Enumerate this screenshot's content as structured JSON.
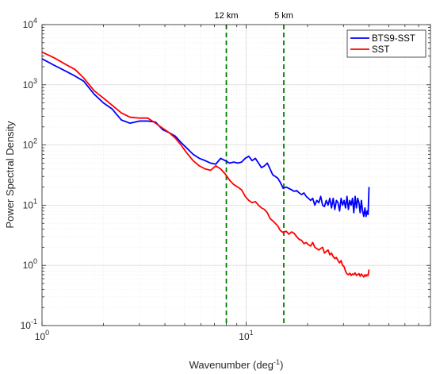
{
  "chart_data": {
    "type": "line",
    "xlabel": "Wavenumber (deg",
    "xlabel_sup": "-1",
    "xlabel_close": ")",
    "ylabel": "Power Spectral Density",
    "xscale": "log",
    "yscale": "log",
    "xlim": [
      1,
      80
    ],
    "ylim": [
      0.1,
      10000
    ],
    "grid": true,
    "legend_position": "top-right",
    "x_ticks": [
      {
        "value": 1,
        "base": "10",
        "exp": "0"
      },
      {
        "value": 10,
        "base": "10",
        "exp": "1"
      }
    ],
    "y_ticks": [
      {
        "value": 0.1,
        "base": "10",
        "exp": "-1"
      },
      {
        "value": 1,
        "base": "10",
        "exp": "0"
      },
      {
        "value": 10,
        "base": "10",
        "exp": "1"
      },
      {
        "value": 100,
        "base": "10",
        "exp": "2"
      },
      {
        "value": 1000,
        "base": "10",
        "exp": "3"
      },
      {
        "value": 10000,
        "base": "10",
        "exp": "4"
      }
    ],
    "vlines": [
      {
        "x": 8.0,
        "label": "12 km",
        "color": "#008000",
        "style": "dashed"
      },
      {
        "x": 15.3,
        "label": "5 km",
        "color": "#008000",
        "style": "dashed"
      }
    ],
    "series": [
      {
        "name": "BTS9-SST",
        "color": "#0000ff",
        "x": [
          1.0,
          1.15,
          1.3,
          1.45,
          1.6,
          1.8,
          2.0,
          2.2,
          2.45,
          2.7,
          3.0,
          3.3,
          3.6,
          3.9,
          4.2,
          4.5,
          4.8,
          5.1,
          5.5,
          5.9,
          6.3,
          6.7,
          7.1,
          7.5,
          7.9,
          8.3,
          8.7,
          9.1,
          9.5,
          9.9,
          10.3,
          10.7,
          11.1,
          11.5,
          11.9,
          12.3,
          12.7,
          13.1,
          13.5,
          13.9,
          14.3,
          14.7,
          15.2,
          15.7,
          16.2,
          16.7,
          17.2,
          17.7,
          18.2,
          18.7,
          19.2,
          19.7,
          20.2,
          20.7,
          21.2,
          21.7,
          22.2,
          22.7,
          23.2,
          23.7,
          24.2,
          24.7,
          25.2,
          25.7,
          26.2,
          26.7,
          27.2,
          27.7,
          28.2,
          28.7,
          29.2,
          29.7,
          30.2,
          30.7,
          31.2,
          31.7,
          32.2,
          32.7,
          33.2,
          33.7,
          34.2,
          34.7,
          35.2,
          35.7,
          36.2,
          36.7,
          37.2,
          37.7,
          38.2,
          38.7,
          39.2,
          39.6,
          40.0
        ],
        "y": [
          2700,
          2100,
          1700,
          1400,
          1150,
          700,
          500,
          400,
          260,
          230,
          250,
          250,
          240,
          180,
          160,
          140,
          110,
          90,
          70,
          60,
          55,
          50,
          48,
          60,
          55,
          50,
          52,
          50,
          52,
          60,
          65,
          55,
          60,
          50,
          42,
          45,
          50,
          40,
          32,
          30,
          28,
          24,
          19,
          20,
          19,
          18,
          17,
          17.5,
          16,
          15,
          16,
          14,
          13,
          12,
          13,
          10,
          12,
          11,
          14,
          10,
          9.5,
          12,
          10,
          13,
          9,
          13,
          8.5,
          12,
          11,
          8,
          13,
          10,
          12,
          9,
          14,
          8.5,
          12,
          10,
          13,
          7.5,
          14,
          9,
          13,
          11,
          7.5,
          12,
          8,
          6.5,
          9,
          6.5,
          8,
          7,
          20
        ]
      },
      {
        "name": "SST",
        "color": "#ff0000",
        "x": [
          1.0,
          1.15,
          1.3,
          1.45,
          1.6,
          1.8,
          2.0,
          2.2,
          2.45,
          2.7,
          3.0,
          3.3,
          3.6,
          3.9,
          4.2,
          4.5,
          4.8,
          5.1,
          5.5,
          5.9,
          6.3,
          6.7,
          7.1,
          7.5,
          7.9,
          8.3,
          8.7,
          9.1,
          9.5,
          9.9,
          10.3,
          10.7,
          11.1,
          11.5,
          11.9,
          12.3,
          12.7,
          13.1,
          13.5,
          13.9,
          14.3,
          14.7,
          15.2,
          15.7,
          16.2,
          16.7,
          17.2,
          17.7,
          18.2,
          18.7,
          19.2,
          19.7,
          20.2,
          20.7,
          21.2,
          21.7,
          22.2,
          22.7,
          23.2,
          23.7,
          24.2,
          24.7,
          25.2,
          25.7,
          26.2,
          26.7,
          27.2,
          27.7,
          28.2,
          28.7,
          29.2,
          29.7,
          30.2,
          30.7,
          31.2,
          31.7,
          32.2,
          32.7,
          33.2,
          33.7,
          34.2,
          34.7,
          35.2,
          35.7,
          36.2,
          36.7,
          37.2,
          37.7,
          38.2,
          38.7,
          39.2,
          39.6,
          40.0
        ],
        "y": [
          3500,
          2800,
          2200,
          1800,
          1300,
          800,
          600,
          460,
          340,
          290,
          280,
          280,
          230,
          190,
          160,
          130,
          100,
          75,
          55,
          45,
          40,
          38,
          45,
          40,
          33,
          26,
          22,
          20,
          18,
          14,
          12,
          11,
          11.5,
          10,
          9,
          8.5,
          7.5,
          6,
          5.5,
          5,
          4.5,
          3.8,
          3.5,
          3.7,
          3.3,
          3.6,
          3.4,
          3.0,
          2.7,
          2.6,
          2.3,
          2.4,
          2.2,
          2.1,
          2.4,
          2.0,
          1.9,
          1.8,
          1.9,
          2.0,
          1.6,
          1.7,
          1.8,
          1.5,
          1.6,
          1.4,
          1.3,
          1.35,
          1.2,
          1.1,
          1.2,
          1.0,
          0.95,
          0.8,
          0.72,
          0.7,
          0.74,
          0.68,
          0.72,
          0.7,
          0.75,
          0.68,
          0.7,
          0.73,
          0.66,
          0.72,
          0.68,
          0.64,
          0.7,
          0.66,
          0.7,
          0.68,
          0.85
        ]
      }
    ]
  }
}
